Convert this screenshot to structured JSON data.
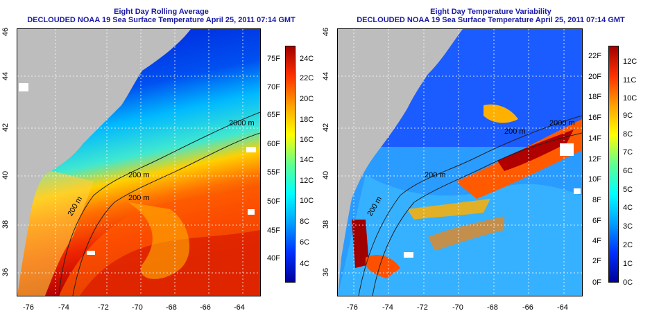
{
  "panels": [
    {
      "title_line1": "Eight Day Rolling Average",
      "title_line2": "DECLOUDED NOAA 19 Sea Surface Temperature April 25, 2011 07:14 GMT",
      "x_ticks": [
        "-76",
        "-74",
        "-72",
        "-70",
        "-68",
        "-66",
        "-64"
      ],
      "y_ticks": [
        "36",
        "38",
        "40",
        "42",
        "44",
        "46"
      ],
      "contour_labels": [
        "200 m",
        "2000 m",
        "200 m",
        "200 m"
      ],
      "colorbar_left": [
        "40F",
        "45F",
        "50F",
        "55F",
        "60F",
        "65F",
        "70F",
        "75F"
      ],
      "colorbar_right": [
        "4C",
        "6C",
        "8C",
        "10C",
        "12C",
        "14C",
        "16C",
        "18C",
        "20C",
        "22C",
        "24C"
      ],
      "colors": {
        "cold": "#0000a0",
        "mid": "#00c8ff",
        "warm": "#ffe000",
        "hot": "#a00000"
      }
    },
    {
      "title_line1": "Eight Day Temperature Variability",
      "title_line2": "DECLOUDED NOAA 19 Sea Surface Temperature April 25, 2011 07:14 GMT",
      "x_ticks": [
        "-76",
        "-74",
        "-72",
        "-70",
        "-68",
        "-66",
        "-64"
      ],
      "y_ticks": [
        "36",
        "38",
        "40",
        "42",
        "44",
        "46"
      ],
      "contour_labels": [
        "200 m",
        "2000 m",
        "200 m",
        "200 m"
      ],
      "colorbar_left": [
        "0F",
        "2F",
        "4F",
        "6F",
        "8F",
        "10F",
        "12F",
        "14F",
        "16F",
        "18F",
        "20F",
        "22F"
      ],
      "colorbar_right": [
        "0C",
        "1C",
        "2C",
        "3C",
        "4C",
        "5C",
        "6C",
        "7C",
        "8C",
        "9C",
        "10C",
        "11C",
        "12C"
      ],
      "colors": {
        "cold": "#00008a",
        "mid": "#00e0ff",
        "warm": "#ffd000",
        "hot": "#9a0000"
      }
    }
  ]
}
